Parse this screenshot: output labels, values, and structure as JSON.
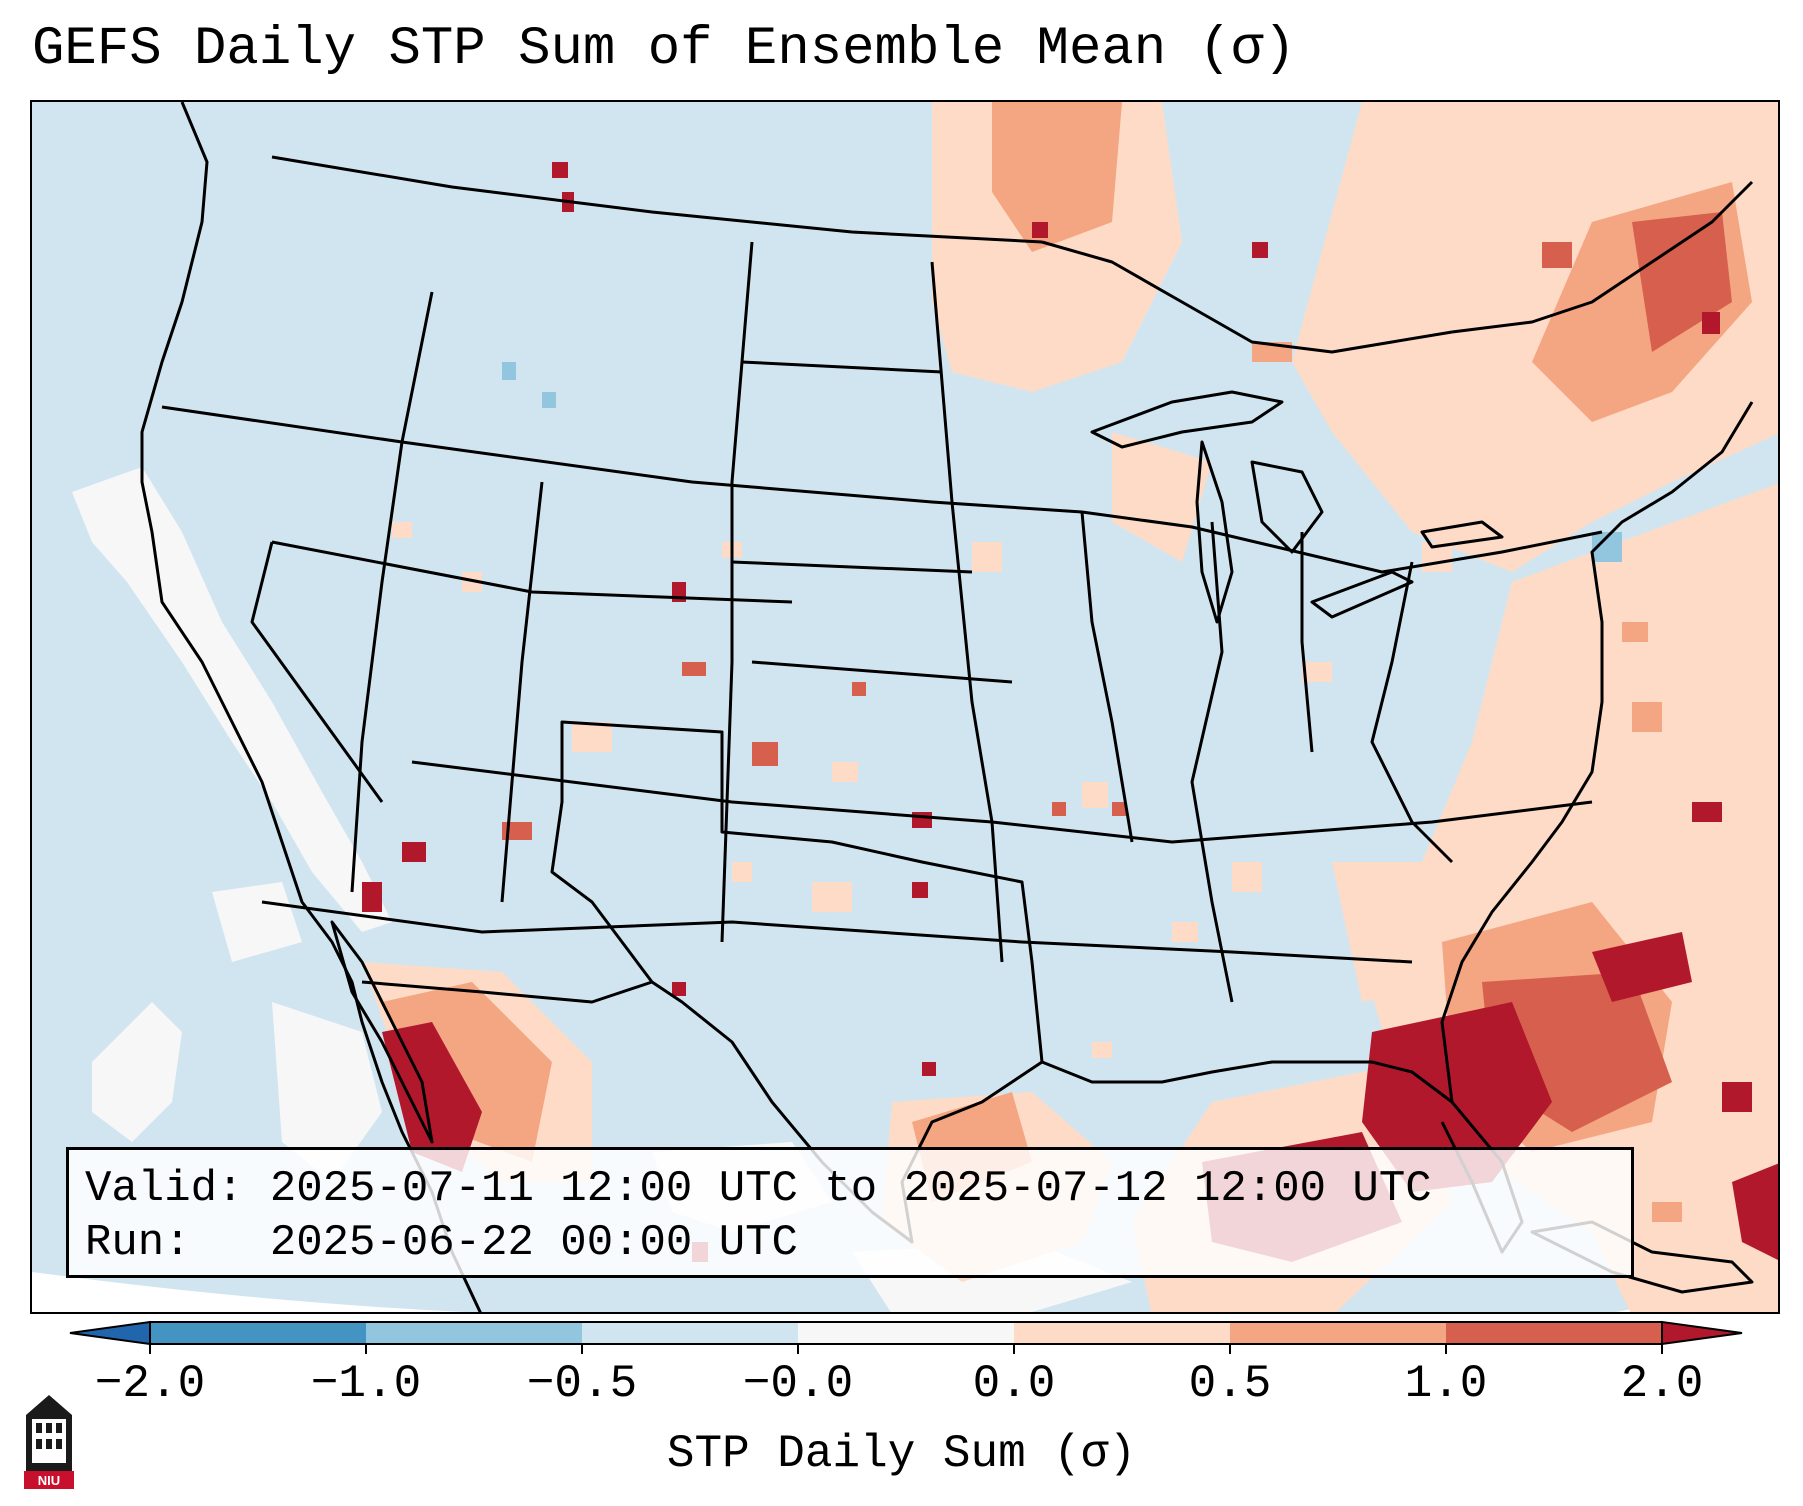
{
  "title": "GEFS Daily STP Sum of Ensemble Mean (σ)",
  "info": {
    "valid_label": "Valid:",
    "valid_text": "2025-07-11 12:00 UTC to 2025-07-12 12:00 UTC",
    "run_label": "Run:",
    "run_text": "2025-06-22 00:00 UTC"
  },
  "colorbar": {
    "label": "STP Daily Sum (σ)",
    "ticks": [
      "−2.0",
      "−1.0",
      "−0.5",
      "−0.0",
      "0.0",
      "0.5",
      "1.0",
      "2.0"
    ],
    "colors": [
      "#2166ac",
      "#4393c3",
      "#92c5de",
      "#d1e5f0",
      "#f7f7f7",
      "#fddbc7",
      "#f4a582",
      "#d6604d",
      "#b2182b"
    ],
    "extend": "both"
  },
  "map": {
    "projection": "Lambert conformal, CONUS",
    "background_color": "#d1e5f0",
    "legend_bins_sigma": [
      {
        "range": "below -2.0",
        "color": "#2166ac"
      },
      {
        "range": "-2.0 to -1.0",
        "color": "#4393c3"
      },
      {
        "range": "-1.0 to -0.5",
        "color": "#92c5de"
      },
      {
        "range": "-0.5 to -0.0",
        "color": "#d1e5f0"
      },
      {
        "range": "-0.0 to 0.0",
        "color": "#f7f7f7"
      },
      {
        "range": "0.0 to 0.5",
        "color": "#fddbc7"
      },
      {
        "range": "0.5 to 1.0",
        "color": "#f4a582"
      },
      {
        "range": "1.0 to 2.0",
        "color": "#d6604d"
      },
      {
        "range": "above 2.0",
        "color": "#b2182b"
      }
    ]
  },
  "logo": {
    "text": "NIU",
    "icon": "niu-seal-icon"
  }
}
